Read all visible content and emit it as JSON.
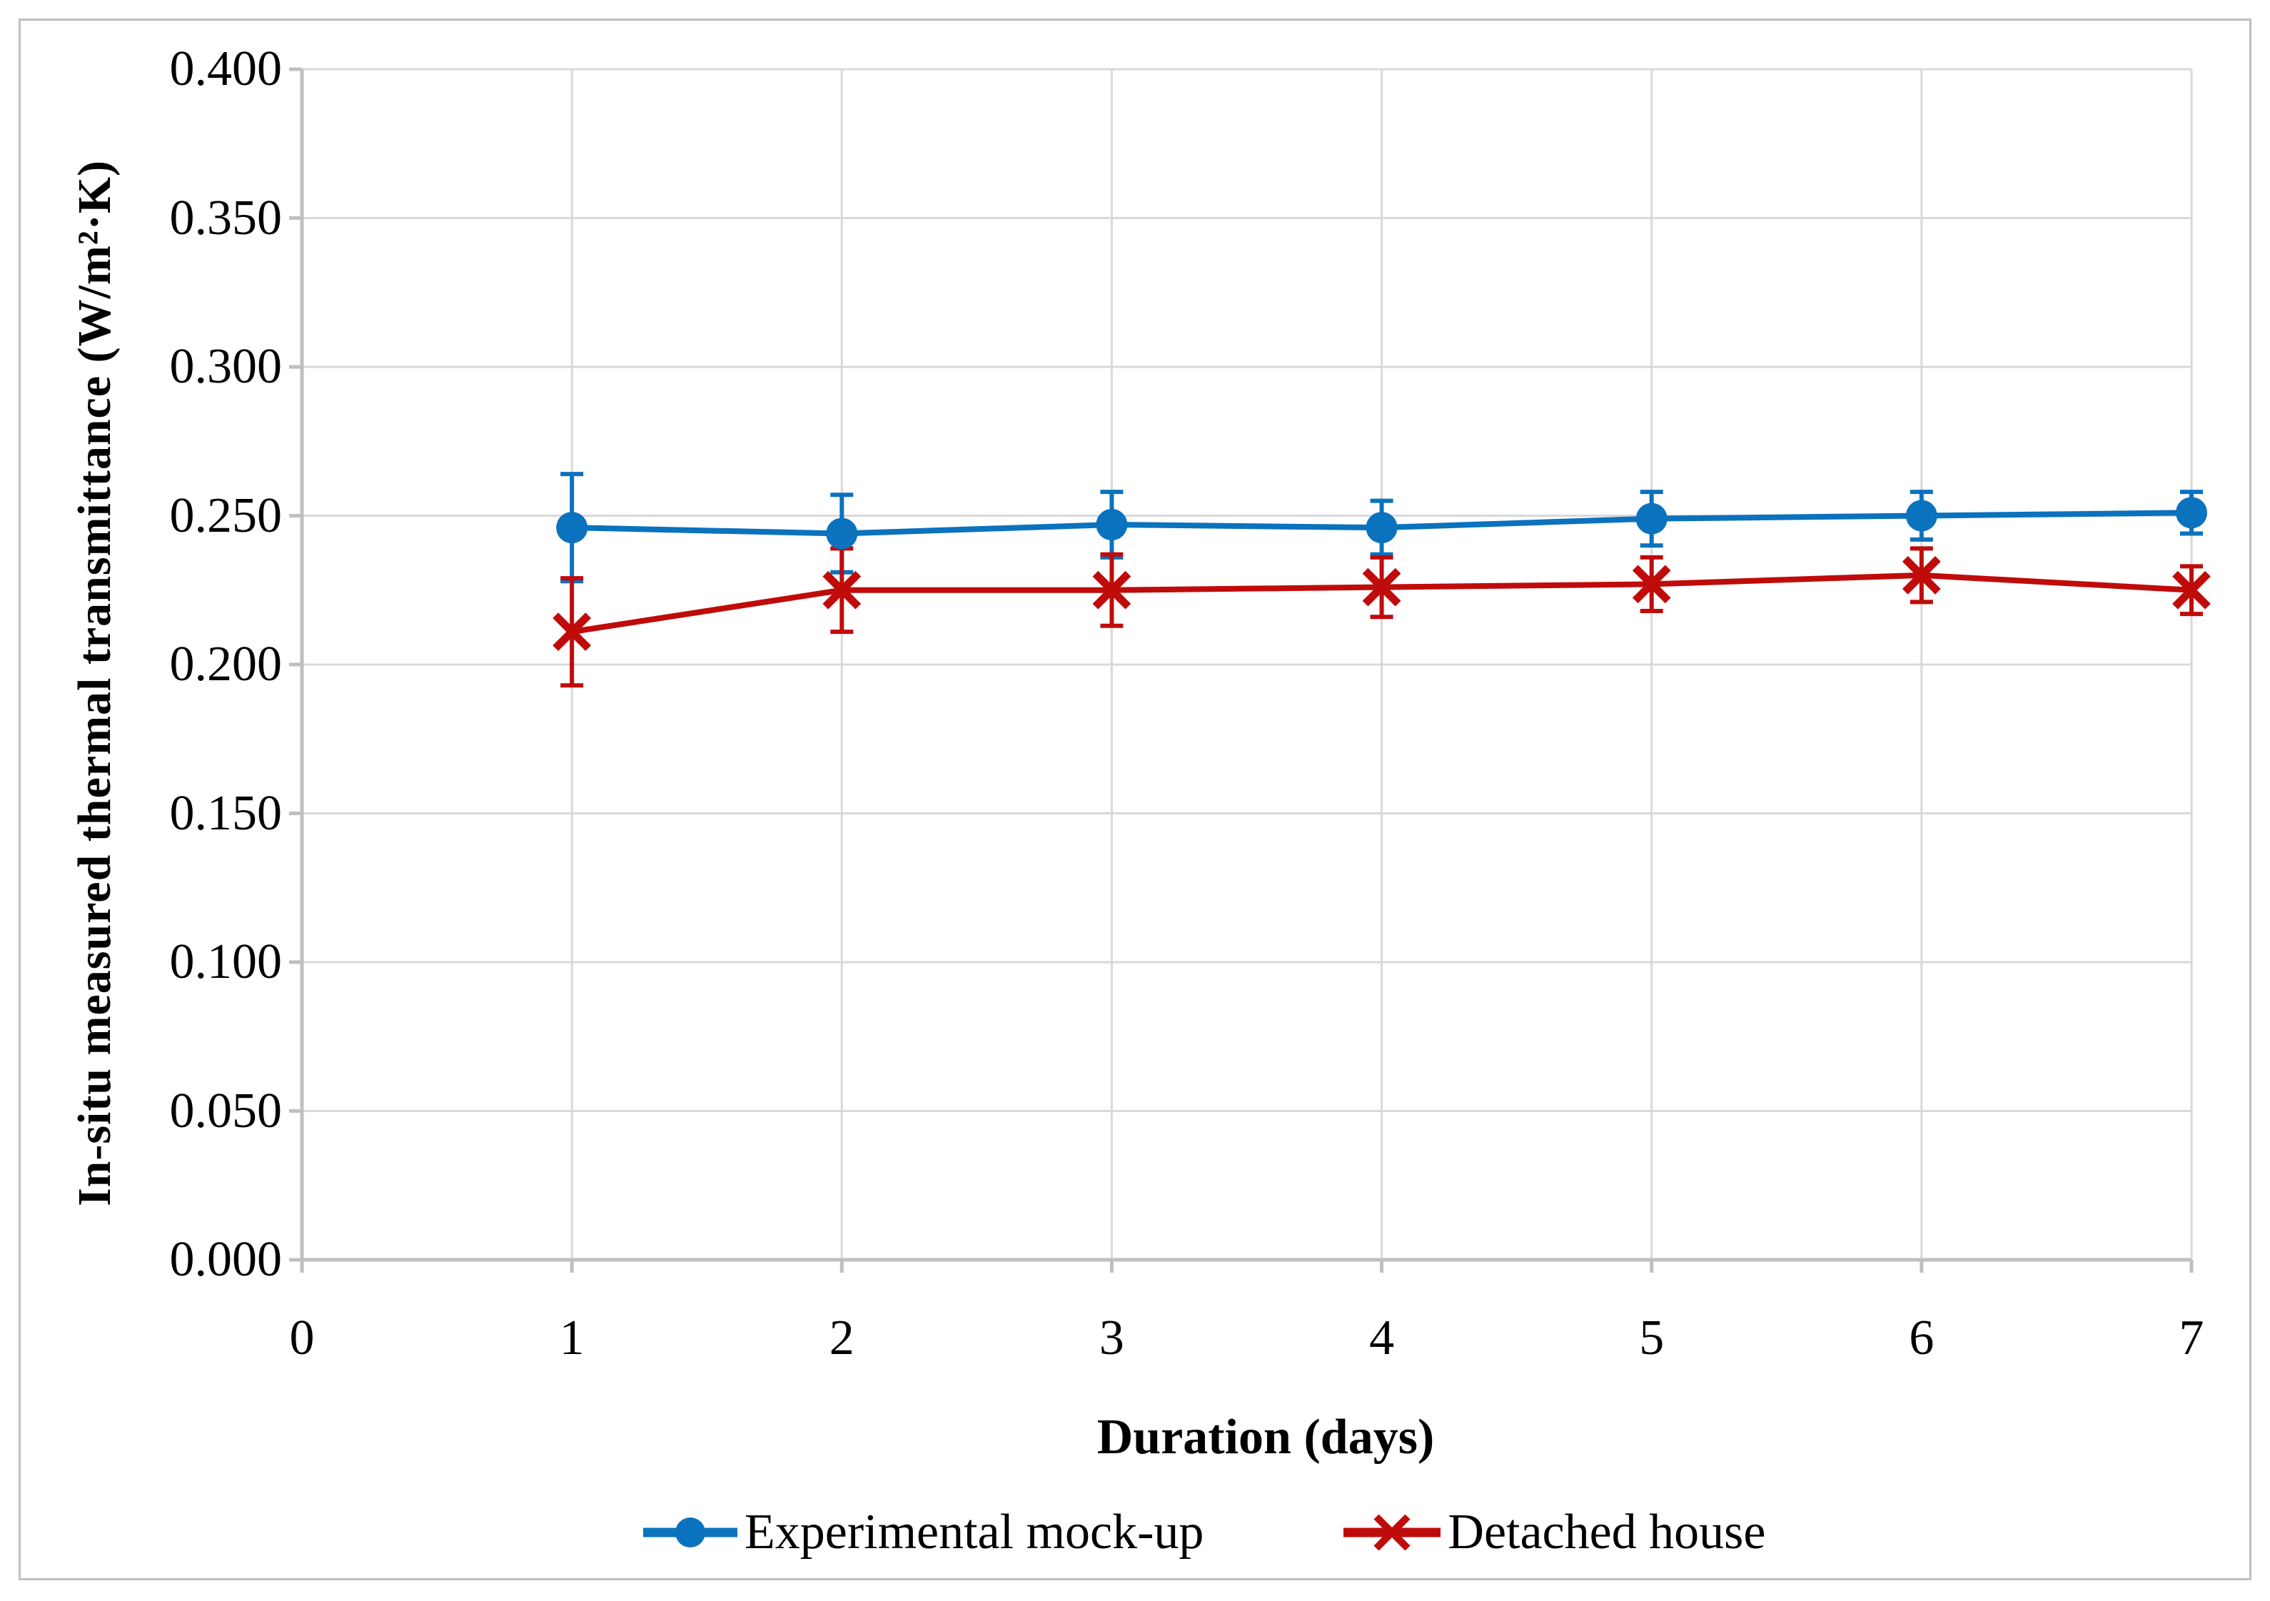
{
  "figure": {
    "background": "#FFFFFF",
    "border_color": "#BFBFBF"
  },
  "styles": {
    "grid_color": "#D9D9D9",
    "axis_color": "#BFBFBF",
    "text_color": "#000000"
  },
  "legend": {
    "position": "bottom",
    "items": [
      {
        "label": "Experimental mock-up",
        "marker": "circle",
        "color": "#0B72BE"
      },
      {
        "label": "Detached house",
        "marker": "x",
        "color": "#C00B0B"
      }
    ]
  },
  "chart_data": {
    "type": "line",
    "title": "",
    "xlabel": "Duration (days)",
    "ylabel": "In-situ measured thermal transmittance (W/m²·K)",
    "x": [
      1,
      2,
      3,
      4,
      5,
      6,
      7
    ],
    "series": [
      {
        "name": "Experimental mock-up",
        "marker": "circle",
        "color": "#0B72BE",
        "values": [
          0.246,
          0.244,
          0.247,
          0.246,
          0.249,
          0.25,
          0.251
        ],
        "errors": [
          0.018,
          0.013,
          0.011,
          0.009,
          0.009,
          0.008,
          0.007
        ]
      },
      {
        "name": "Detached house",
        "marker": "x",
        "color": "#C00B0B",
        "values": [
          0.211,
          0.225,
          0.225,
          0.226,
          0.227,
          0.23,
          0.225
        ],
        "errors": [
          0.018,
          0.014,
          0.012,
          0.01,
          0.009,
          0.009,
          0.008
        ]
      }
    ],
    "xlim": [
      0,
      7
    ],
    "ylim": [
      0,
      0.4
    ],
    "x_tick_labels": [
      "0",
      "1",
      "2",
      "3",
      "4",
      "5",
      "6",
      "7"
    ],
    "y_tick_labels": [
      "0.000",
      "0.050",
      "0.100",
      "0.150",
      "0.200",
      "0.250",
      "0.300",
      "0.350",
      "0.400"
    ],
    "grid": true,
    "legend_position": "bottom"
  }
}
